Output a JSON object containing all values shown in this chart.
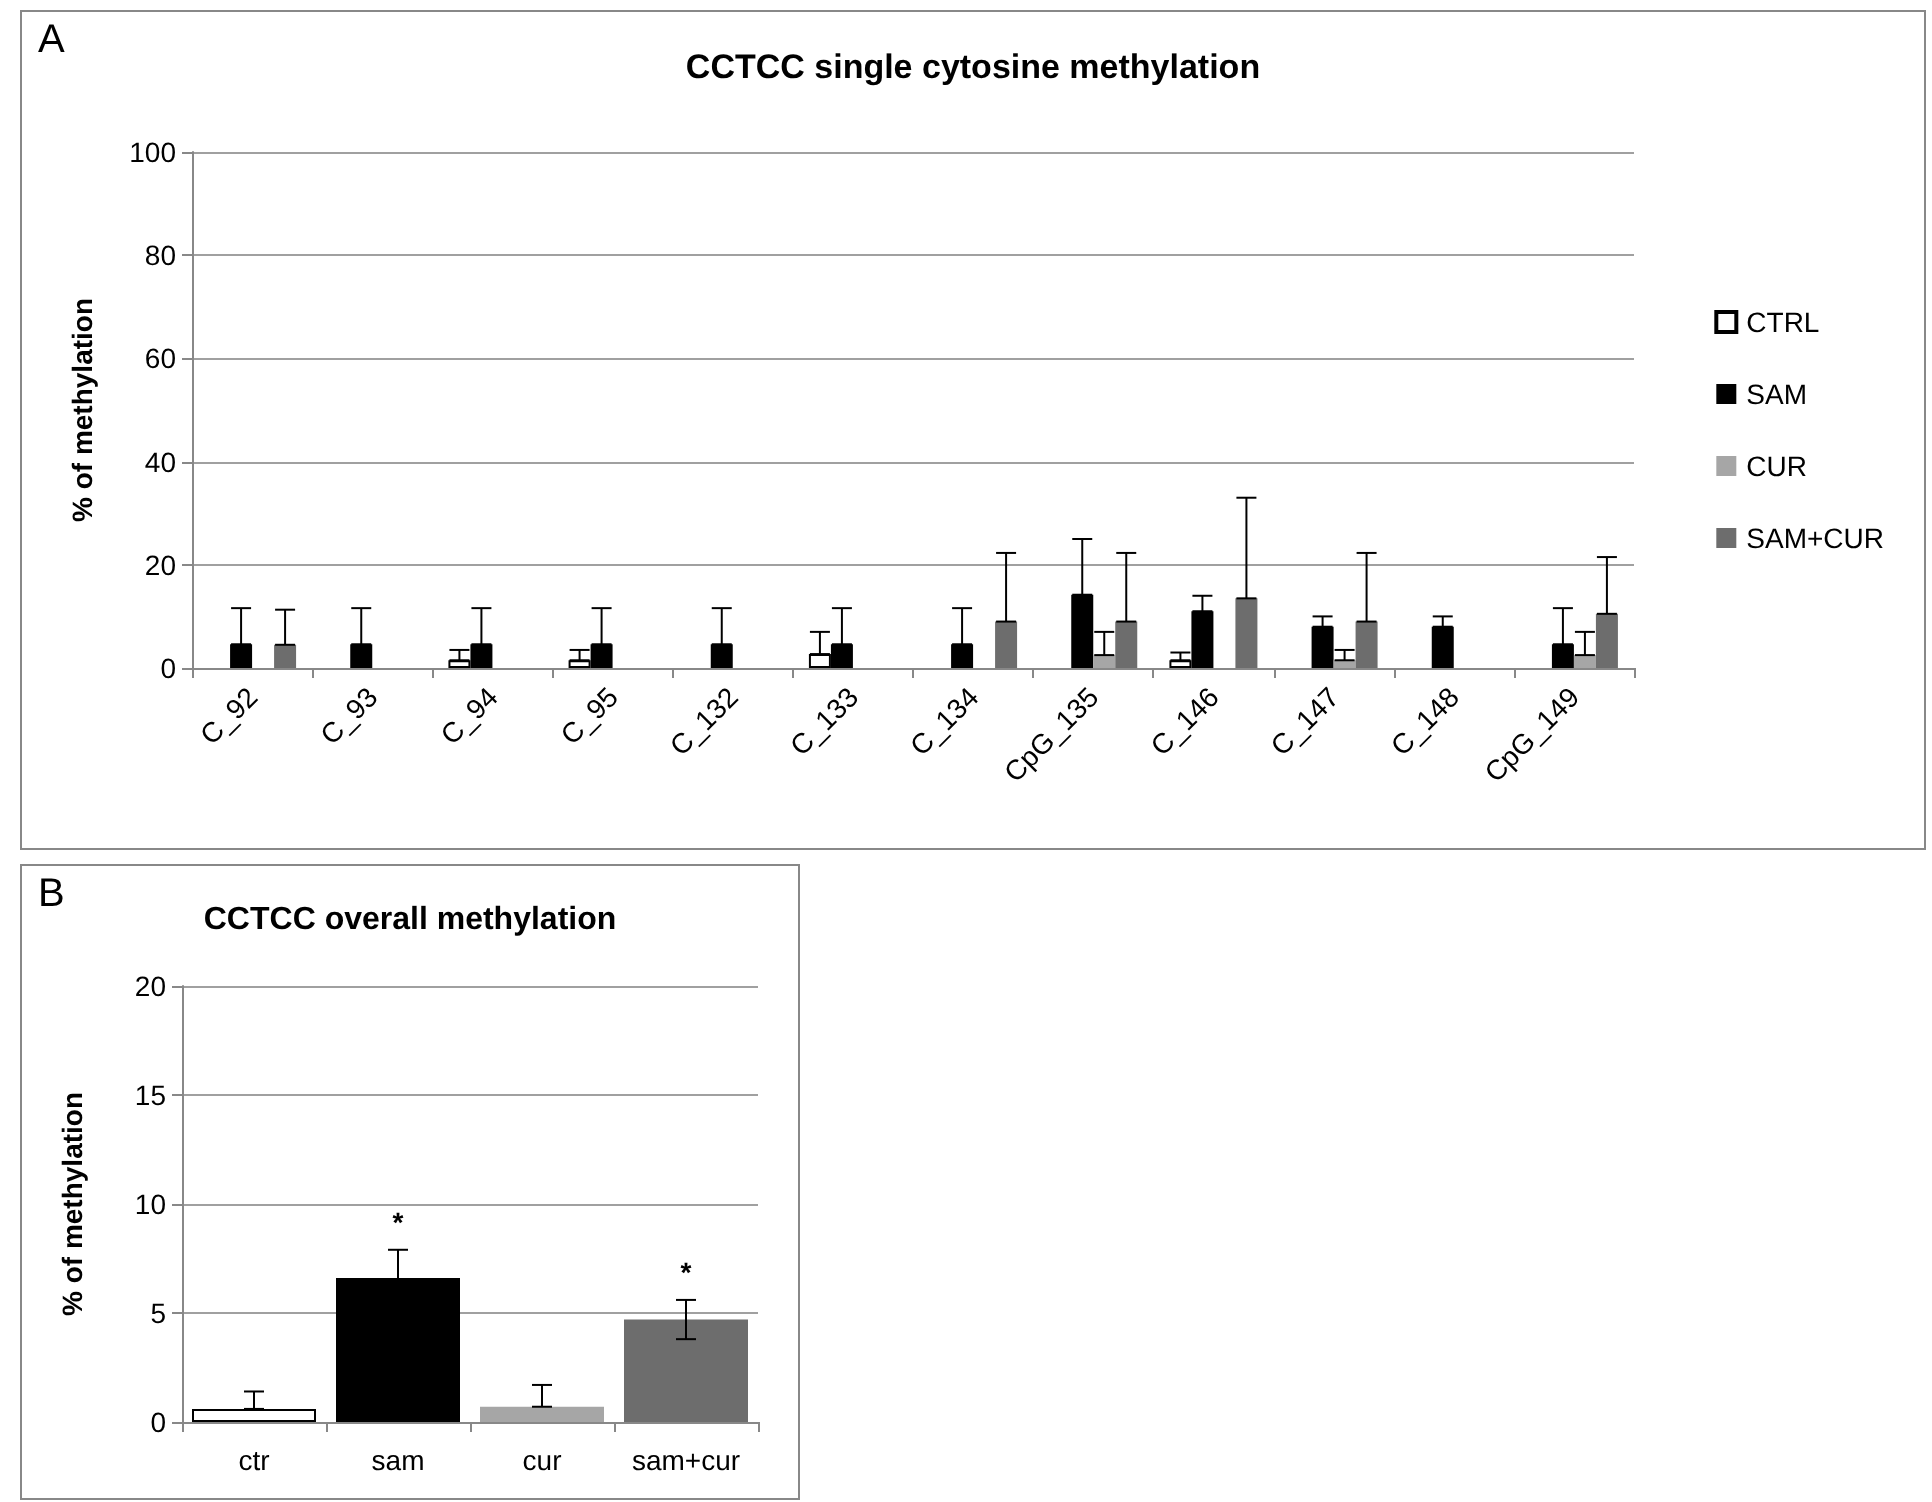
{
  "chart_data": [
    {
      "type": "bar",
      "title": "CCTCC single cytosine methylation",
      "ylabel": "% of methylation",
      "annotations": [
        "A"
      ],
      "categories": [
        "C_92",
        "C_93",
        "C_94",
        "C_95",
        "C_132",
        "C_133",
        "C_134",
        "CpG_135",
        "C_146",
        "C_147",
        "C_148",
        "CpG_149"
      ],
      "series": [
        {
          "name": "CTRL",
          "color": "#ffffff",
          "values": [
            0,
            0,
            1.5,
            1.5,
            0,
            2.7,
            0,
            0,
            1.5,
            0,
            0,
            0
          ],
          "errors": [
            null,
            null,
            [
              1.5,
              3.5
            ],
            [
              1.5,
              3.5
            ],
            null,
            [
              2.7,
              7
            ],
            null,
            null,
            [
              1.5,
              3
            ],
            null,
            null,
            null
          ]
        },
        {
          "name": "SAM",
          "color": "#000000",
          "values": [
            4.6,
            4.6,
            4.6,
            4.6,
            4.6,
            4.6,
            4.6,
            14.2,
            11,
            8,
            8,
            4.6
          ],
          "errors": [
            [
              4.6,
              11.6
            ],
            [
              4.6,
              11.6
            ],
            [
              4.6,
              11.6
            ],
            [
              4.6,
              11.6
            ],
            [
              4.6,
              11.6
            ],
            [
              4.6,
              11.6
            ],
            [
              4.6,
              11.6
            ],
            [
              14.2,
              25
            ],
            [
              11,
              14
            ],
            [
              8,
              10
            ],
            [
              8,
              10
            ],
            [
              4.6,
              11.6
            ]
          ]
        },
        {
          "name": "CUR",
          "color": "#a6a6a6",
          "values": [
            0,
            0,
            0,
            0,
            0,
            0,
            0,
            2.5,
            0,
            1.5,
            0,
            2.5
          ],
          "errors": [
            null,
            null,
            null,
            null,
            null,
            null,
            null,
            [
              2.5,
              7
            ],
            null,
            [
              1.5,
              3.5
            ],
            null,
            [
              2.5,
              7
            ]
          ]
        },
        {
          "name": "SAM+CUR",
          "color": "#6d6d6d",
          "values": [
            4.5,
            0,
            0,
            0,
            0,
            0,
            9,
            9,
            13.5,
            9,
            0,
            10.5
          ],
          "errors": [
            [
              4.5,
              11.3
            ],
            null,
            null,
            null,
            null,
            null,
            [
              9,
              22.3
            ],
            [
              9,
              22.3
            ],
            [
              13.5,
              33
            ],
            [
              9,
              22.3
            ],
            null,
            [
              10.5,
              21.5
            ]
          ]
        }
      ],
      "ylim": [
        0,
        100
      ],
      "yticks": [
        0,
        20,
        40,
        60,
        80,
        100
      ],
      "grid": "y",
      "legend": "right"
    },
    {
      "type": "bar",
      "title": "CCTCC overall methylation",
      "ylabel": "% of methylation",
      "annotations": [
        "B",
        {
          "text": "*",
          "x": "sam",
          "y": 7.9
        },
        {
          "text": "*",
          "x": "sam+cur",
          "y": 5.6
        }
      ],
      "categories": [
        "ctr",
        "sam",
        "cur",
        "sam+cur"
      ],
      "values": [
        0.6,
        6.6,
        0.7,
        4.7
      ],
      "colors": [
        "#ffffff",
        "#000000",
        "#a6a6a6",
        "#6d6d6d"
      ],
      "errors": [
        [
          0.6,
          1.4
        ],
        1.3,
        [
          0.7,
          1.7
        ],
        [
          3.8,
          5.6
        ]
      ],
      "ylim": [
        0,
        20
      ],
      "yticks": [
        0,
        5,
        10,
        15,
        20
      ],
      "grid": "y"
    }
  ]
}
